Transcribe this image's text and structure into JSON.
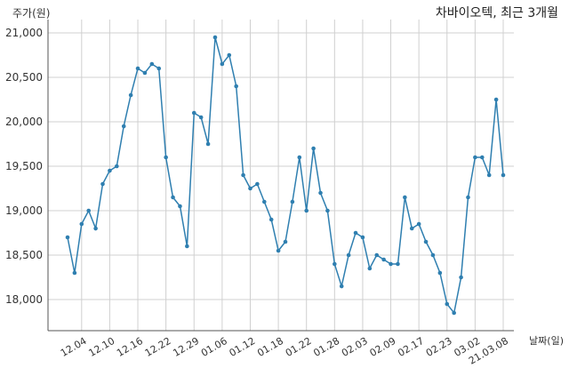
{
  "chart_data": {
    "type": "line",
    "title": "차바이오텍, 최근 3개월",
    "ylabel": "주가(원)",
    "xlabel": "날짜(일)",
    "ylim": [
      17650,
      21150
    ],
    "yticks": [
      18000,
      18500,
      19000,
      19500,
      20000,
      20500,
      21000
    ],
    "ytick_labels": [
      "18,000",
      "18,500",
      "19,000",
      "19,500",
      "20,000",
      "20,500",
      "21,000"
    ],
    "x_tick_labels": [
      {
        "index": 2,
        "label": "12.04"
      },
      {
        "index": 6,
        "label": "12.10"
      },
      {
        "index": 10,
        "label": "12.16"
      },
      {
        "index": 14,
        "label": "12.22"
      },
      {
        "index": 18,
        "label": "12.29"
      },
      {
        "index": 22,
        "label": "01.06"
      },
      {
        "index": 26,
        "label": "01.12"
      },
      {
        "index": 30,
        "label": "01.18"
      },
      {
        "index": 34,
        "label": "01.22"
      },
      {
        "index": 38,
        "label": "01.28"
      },
      {
        "index": 42,
        "label": "02.03"
      },
      {
        "index": 46,
        "label": "02.09"
      },
      {
        "index": 50,
        "label": "02.17"
      },
      {
        "index": 54,
        "label": "02.23"
      },
      {
        "index": 58,
        "label": "03.02"
      },
      {
        "index": 62,
        "label": "21.03.08"
      }
    ],
    "grid": true,
    "color": "#2f7fb0",
    "series": [
      {
        "values": [
          18700,
          18300,
          18850,
          19000,
          18800,
          19300,
          19450,
          19500,
          19950,
          20300,
          20600,
          20550,
          20650,
          20600,
          19600,
          19150,
          19050,
          18600,
          20100,
          20050,
          19750,
          20950,
          20650,
          20750,
          20400,
          19400,
          19250,
          19300,
          19100,
          18900,
          18550,
          18650,
          19100,
          19600,
          19000,
          19700,
          19200,
          19000,
          18400,
          18150,
          18500,
          18750,
          18700,
          18350,
          18500,
          18450,
          18400,
          18400,
          19150,
          18800,
          18850,
          18650,
          18500,
          18300,
          17950,
          17850,
          18250,
          19150,
          19600,
          19600,
          19400,
          20250,
          19400
        ]
      }
    ]
  }
}
